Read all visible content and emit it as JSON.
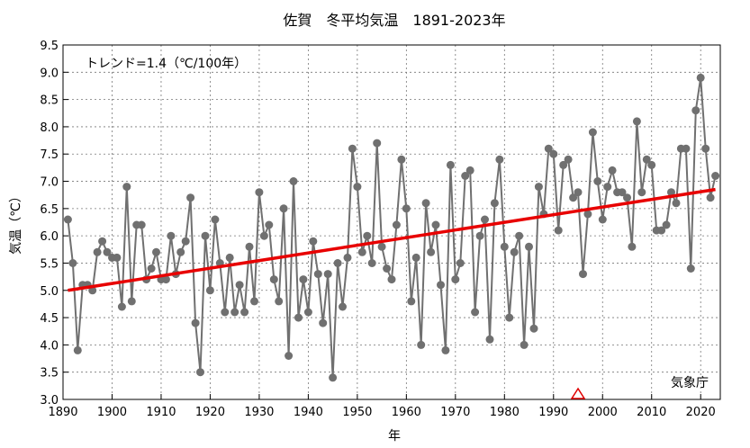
{
  "chart_data": {
    "type": "line",
    "title": "佐賀　冬平均気温　1891-2023年",
    "xlabel": "年",
    "ylabel": "気温（℃）",
    "xlim": [
      1890,
      2024
    ],
    "ylim": [
      3.0,
      9.5
    ],
    "xticks": [
      "1890",
      "1900",
      "1910",
      "1920",
      "1930",
      "1940",
      "1950",
      "1960",
      "1970",
      "1980",
      "1990",
      "2000",
      "2010",
      "2020"
    ],
    "yticks": [
      "3.0",
      "3.5",
      "4.0",
      "4.5",
      "5.0",
      "5.5",
      "6.0",
      "6.5",
      "7.0",
      "7.5",
      "8.0",
      "8.5",
      "9.0",
      "9.5"
    ],
    "grid": true,
    "trend_label": "トレンド=1.4（℃/100年）",
    "source_label": "気象庁",
    "trend": {
      "x": [
        1891,
        2023
      ],
      "y": [
        5.0,
        6.85
      ]
    },
    "marker_year": 1995,
    "colors": {
      "series": "#707070",
      "trend": "#e80000",
      "marker": "#e00000"
    },
    "series": [
      {
        "x": [
          1891,
          1892,
          1893,
          1894,
          1895,
          1896,
          1897,
          1898,
          1899,
          1900,
          1901,
          1902,
          1903,
          1904,
          1905,
          1906,
          1907,
          1908,
          1909,
          1910,
          1911,
          1912,
          1913,
          1914,
          1915,
          1916,
          1917,
          1918,
          1919,
          1920,
          1921,
          1922,
          1923,
          1924,
          1925,
          1926,
          1927,
          1928,
          1929,
          1930,
          1931,
          1932,
          1933,
          1934,
          1935,
          1936,
          1937,
          1938,
          1939,
          1940,
          1941,
          1942,
          1943,
          1944,
          1945,
          1946,
          1947,
          1948,
          1949,
          1950,
          1951,
          1952,
          1953,
          1954,
          1955,
          1956,
          1957,
          1958,
          1959,
          1960,
          1961,
          1962,
          1963,
          1964,
          1965,
          1966,
          1967,
          1968,
          1969,
          1970,
          1971,
          1972,
          1973,
          1974,
          1975,
          1976,
          1977,
          1978,
          1979,
          1980,
          1981,
          1982,
          1983,
          1984,
          1985,
          1986,
          1987,
          1988,
          1989,
          1990,
          1991,
          1992,
          1993,
          1994,
          1995,
          1996,
          1997,
          1998,
          1999,
          2000,
          2001,
          2002,
          2003,
          2004,
          2005,
          2006,
          2007,
          2008,
          2009,
          2010,
          2011,
          2012,
          2013,
          2014,
          2015,
          2016,
          2017,
          2018,
          2019,
          2020,
          2021,
          2022,
          2023
        ],
        "y": [
          6.3,
          5.5,
          3.9,
          5.1,
          5.1,
          5.0,
          5.7,
          5.9,
          5.7,
          5.6,
          5.6,
          4.7,
          6.9,
          4.8,
          6.2,
          6.2,
          5.2,
          5.4,
          5.7,
          5.2,
          5.2,
          6.0,
          5.3,
          5.7,
          5.9,
          6.7,
          4.4,
          3.5,
          6.0,
          5.0,
          6.3,
          5.5,
          4.6,
          5.6,
          4.6,
          5.1,
          4.6,
          5.8,
          4.8,
          6.8,
          6.0,
          6.2,
          5.2,
          4.8,
          6.5,
          3.8,
          7.0,
          4.5,
          5.2,
          4.6,
          5.9,
          5.3,
          4.4,
          5.3,
          3.4,
          5.5,
          4.7,
          5.6,
          7.6,
          6.9,
          5.7,
          6.0,
          5.5,
          7.7,
          5.8,
          5.4,
          5.2,
          6.2,
          7.4,
          6.5,
          4.8,
          5.6,
          4.0,
          6.6,
          5.7,
          6.2,
          5.1,
          3.9,
          7.3,
          5.2,
          5.5,
          7.1,
          7.2,
          4.6,
          6.0,
          6.3,
          4.1,
          6.6,
          7.4,
          5.8,
          4.5,
          5.7,
          6.0,
          4.0,
          5.8,
          4.3,
          6.9,
          6.4,
          7.6,
          7.5,
          6.1,
          7.3,
          7.4,
          6.7,
          6.8,
          5.3,
          6.4,
          7.9,
          7.0,
          6.3,
          6.9,
          7.2,
          6.8,
          6.8,
          6.7,
          5.8,
          8.1,
          6.8,
          7.4,
          7.3,
          6.1,
          6.1,
          6.2,
          6.8,
          6.6,
          7.6,
          7.6,
          5.4,
          8.3,
          8.9,
          7.6,
          6.7,
          7.1
        ]
      }
    ]
  }
}
